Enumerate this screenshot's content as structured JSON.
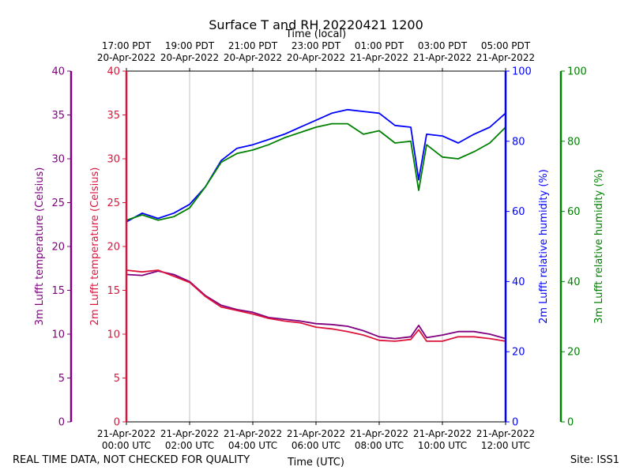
{
  "chart_data": {
    "type": "line",
    "title": "Surface T and RH 20220421 1200",
    "xlabel": "Time (UTC)",
    "xlabel_top": "Time (local)",
    "x_ticks_bottom": [
      {
        "date": "21-Apr-2022",
        "time": "00:00 UTC"
      },
      {
        "date": "21-Apr-2022",
        "time": "02:00 UTC"
      },
      {
        "date": "21-Apr-2022",
        "time": "04:00 UTC"
      },
      {
        "date": "21-Apr-2022",
        "time": "06:00 UTC"
      },
      {
        "date": "21-Apr-2022",
        "time": "08:00 UTC"
      },
      {
        "date": "21-Apr-2022",
        "time": "10:00 UTC"
      },
      {
        "date": "21-Apr-2022",
        "time": "12:00 UTC"
      }
    ],
    "x_ticks_top": [
      {
        "time": "17:00 PDT",
        "date": "20-Apr-2022"
      },
      {
        "time": "19:00 PDT",
        "date": "20-Apr-2022"
      },
      {
        "time": "21:00 PDT",
        "date": "20-Apr-2022"
      },
      {
        "time": "23:00 PDT",
        "date": "20-Apr-2022"
      },
      {
        "time": "01:00 PDT",
        "date": "21-Apr-2022"
      },
      {
        "time": "03:00 PDT",
        "date": "21-Apr-2022"
      },
      {
        "time": "05:00 PDT",
        "date": "21-Apr-2022"
      }
    ],
    "x_hours": [
      0,
      0.5,
      1,
      1.5,
      2,
      2.5,
      3,
      3.5,
      4,
      4.5,
      5,
      5.5,
      6,
      6.5,
      7,
      7.5,
      8,
      8.5,
      9,
      9.25,
      9.5,
      10,
      10.5,
      11,
      11.5,
      12
    ],
    "xlim": [
      0,
      12
    ],
    "grid": "vertical",
    "axes": [
      {
        "id": "t3",
        "label": "3m Lufft temperature (Celsius)",
        "color": "#800080",
        "ylim": [
          0,
          40
        ],
        "ticks": [
          "0",
          "5",
          "10",
          "15",
          "20",
          "25",
          "30",
          "35",
          "40"
        ]
      },
      {
        "id": "t2",
        "label": "2m Lufft temperature (Celsius)",
        "color": "#dc143c",
        "ylim": [
          0,
          40
        ],
        "ticks": [
          "0",
          "5",
          "10",
          "15",
          "20",
          "25",
          "30",
          "35",
          "40"
        ]
      },
      {
        "id": "rh2",
        "label": "2m Lufft relative humidity (%)",
        "color": "#0000ff",
        "ylim": [
          0,
          100
        ],
        "ticks": [
          "0",
          "20",
          "40",
          "60",
          "80",
          "100"
        ]
      },
      {
        "id": "rh3",
        "label": "3m Lufft relative humidity (%)",
        "color": "#008000",
        "ylim": [
          0,
          100
        ],
        "ticks": [
          "0",
          "20",
          "40",
          "60",
          "80",
          "100"
        ]
      }
    ],
    "series": [
      {
        "axis": "t3",
        "color": "#800080",
        "values": [
          16.8,
          16.7,
          17.2,
          16.8,
          16.0,
          14.4,
          13.3,
          12.8,
          12.5,
          11.9,
          11.7,
          11.5,
          11.2,
          11.1,
          10.9,
          10.4,
          9.7,
          9.5,
          9.7,
          11.0,
          9.6,
          9.9,
          10.3,
          10.3,
          10.0,
          9.5
        ]
      },
      {
        "axis": "t2",
        "color": "#dc143c",
        "values": [
          17.3,
          17.1,
          17.3,
          16.6,
          15.9,
          14.3,
          13.1,
          12.7,
          12.3,
          11.8,
          11.5,
          11.3,
          10.8,
          10.6,
          10.3,
          9.9,
          9.3,
          9.2,
          9.4,
          10.5,
          9.2,
          9.2,
          9.7,
          9.7,
          9.5,
          9.2
        ]
      },
      {
        "axis": "rh2",
        "color": "#0000ff",
        "values": [
          57,
          59.5,
          58,
          59.5,
          62,
          67,
          74.5,
          78,
          79,
          80.5,
          82,
          84,
          86,
          88,
          89,
          88.5,
          88,
          84.5,
          84,
          69,
          82,
          81.5,
          79.5,
          82,
          84,
          88
        ]
      },
      {
        "axis": "rh3",
        "color": "#008000",
        "values": [
          57.5,
          59,
          57.5,
          58.5,
          61,
          67,
          74,
          76.5,
          77.5,
          79,
          81,
          82.5,
          84,
          85,
          85,
          82,
          83,
          79.5,
          80,
          66,
          79,
          75.5,
          75,
          77,
          79.5,
          84
        ]
      }
    ]
  },
  "footer": {
    "left": "REAL TIME DATA, NOT CHECKED FOR QUALITY",
    "right": "Site: ISS1"
  }
}
